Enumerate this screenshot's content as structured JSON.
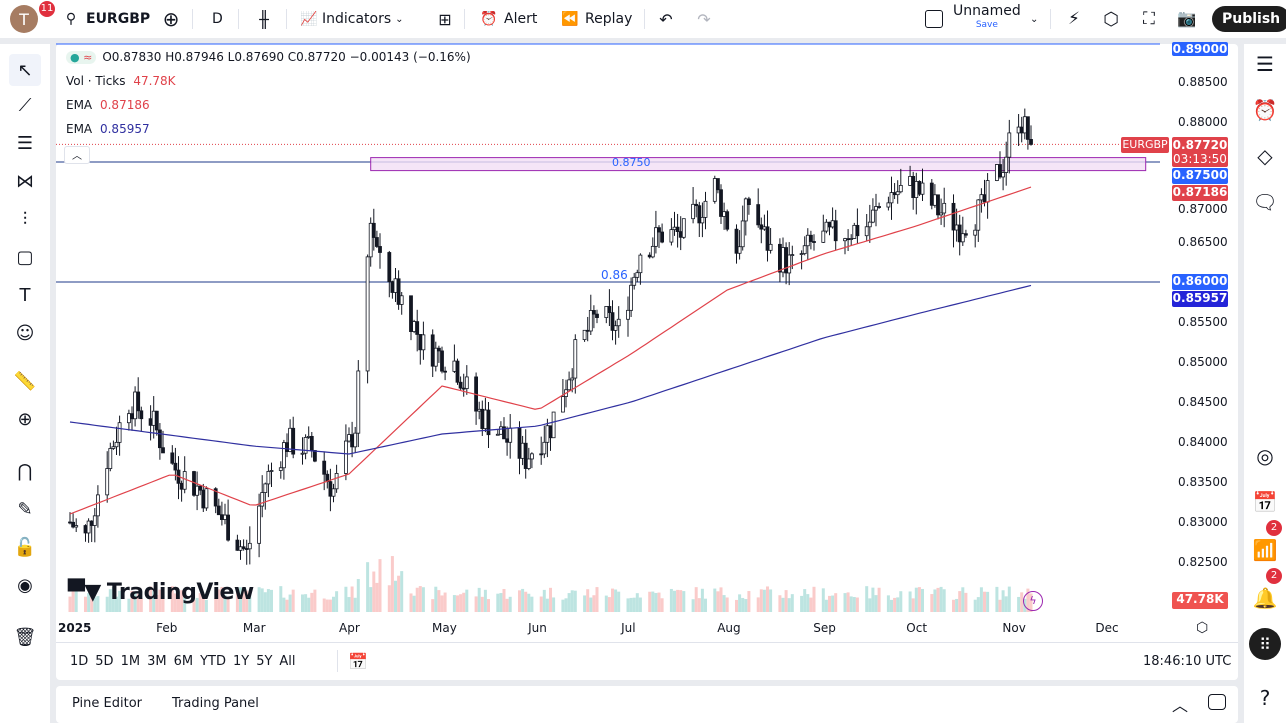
{
  "topbar": {
    "avatar_letter": "T",
    "avatar_badge": "11",
    "symbol": "EURGBP",
    "interval": "D",
    "indicators": "Indicators",
    "alert": "Alert",
    "replay": "Replay",
    "layout_name": "Unnamed",
    "save": "Save",
    "publish": "Publish"
  },
  "legend": {
    "ohlc": "O0.87830 H0.87946 L0.87690 C0.87720 −0.00143 (−0.16%)",
    "vol_label": "Vol · Ticks",
    "vol_value": "47.78K",
    "ema1_label": "EMA",
    "ema1_value": "0.87186",
    "ema2_label": "EMA",
    "ema2_value": "0.85957"
  },
  "price_axis": {
    "ticks": [
      "0.88500",
      "0.88000",
      "0.87000",
      "0.86500",
      "0.85500",
      "0.85000",
      "0.84500",
      "0.84000",
      "0.83500",
      "0.83000",
      "0.82500"
    ],
    "labels": {
      "top": "0.89000",
      "symbol_tag": "EURGBP",
      "last": "0.87720",
      "countdown": "03:13:50",
      "level1": "0.87500",
      "ema1": "0.87186",
      "level2": "0.86000",
      "ema2": "0.85957",
      "volume": "47.78K"
    }
  },
  "time_axis": [
    "2025",
    "Feb",
    "Mar",
    "Apr",
    "May",
    "Jun",
    "Jul",
    "Aug",
    "Sep",
    "Oct",
    "Nov",
    "Dec"
  ],
  "drawings": {
    "zone_label": "0.8750",
    "line_label": "0.86"
  },
  "logo": "TradingView",
  "timeframes": [
    "1D",
    "5D",
    "1M",
    "3M",
    "6M",
    "YTD",
    "1Y",
    "5Y",
    "All"
  ],
  "clock": "18:46:10 UTC",
  "bottom": {
    "pine": "Pine Editor",
    "trading": "Trading Panel"
  },
  "sidebar": {
    "badge_signals": "2",
    "badge_alerts": "2"
  },
  "colors": {
    "up": "#26a69a",
    "down": "#ef5350",
    "ema_fast": "#e0424a",
    "ema_slow": "#3030a0",
    "level": "#2962ff",
    "zone": "#9c27b0"
  },
  "chart_data": {
    "type": "candlestick",
    "symbol": "EURGBP",
    "interval": "1D",
    "close_path": [
      [
        "2025-01-01",
        0.83
      ],
      [
        "2025-01-06",
        0.828
      ],
      [
        "2025-01-13",
        0.838
      ],
      [
        "2025-01-20",
        0.845
      ],
      [
        "2025-01-27",
        0.843
      ],
      [
        "2025-02-03",
        0.837
      ],
      [
        "2025-02-12",
        0.834
      ],
      [
        "2025-02-20",
        0.83
      ],
      [
        "2025-02-27",
        0.826
      ],
      [
        "2025-03-05",
        0.835
      ],
      [
        "2025-03-12",
        0.84
      ],
      [
        "2025-03-20",
        0.839
      ],
      [
        "2025-03-27",
        0.834
      ],
      [
        "2025-04-03",
        0.842
      ],
      [
        "2025-04-08",
        0.868
      ],
      [
        "2025-04-11",
        0.862
      ],
      [
        "2025-04-18",
        0.858
      ],
      [
        "2025-04-25",
        0.852
      ],
      [
        "2025-05-05",
        0.85
      ],
      [
        "2025-05-12",
        0.844
      ],
      [
        "2025-05-20",
        0.841
      ],
      [
        "2025-05-28",
        0.838
      ],
      [
        "2025-06-05",
        0.842
      ],
      [
        "2025-06-13",
        0.851
      ],
      [
        "2025-06-20",
        0.856
      ],
      [
        "2025-06-27",
        0.854
      ],
      [
        "2025-07-04",
        0.864
      ],
      [
        "2025-07-11",
        0.866
      ],
      [
        "2025-07-18",
        0.866
      ],
      [
        "2025-07-28",
        0.872
      ],
      [
        "2025-08-04",
        0.864
      ],
      [
        "2025-08-08",
        0.87
      ],
      [
        "2025-08-15",
        0.864
      ],
      [
        "2025-08-22",
        0.862
      ],
      [
        "2025-08-29",
        0.865
      ],
      [
        "2025-09-05",
        0.866
      ],
      [
        "2025-09-15",
        0.867
      ],
      [
        "2025-09-22",
        0.871
      ],
      [
        "2025-09-30",
        0.872
      ],
      [
        "2025-10-08",
        0.869
      ],
      [
        "2025-10-15",
        0.867
      ],
      [
        "2025-10-22",
        0.869
      ],
      [
        "2025-10-29",
        0.875
      ],
      [
        "2025-11-03",
        0.881
      ],
      [
        "2025-11-07",
        0.8772
      ]
    ],
    "ema_fast": [
      [
        "2025-01-01",
        0.831
      ],
      [
        "2025-02-03",
        0.836
      ],
      [
        "2025-03-01",
        0.832
      ],
      [
        "2025-04-01",
        0.836
      ],
      [
        "2025-05-01",
        0.847
      ],
      [
        "2025-06-01",
        0.844
      ],
      [
        "2025-07-01",
        0.851
      ],
      [
        "2025-08-01",
        0.859
      ],
      [
        "2025-09-01",
        0.8635
      ],
      [
        "2025-10-01",
        0.867
      ],
      [
        "2025-11-07",
        0.87186
      ]
    ],
    "ema_slow": [
      [
        "2025-01-01",
        0.8425
      ],
      [
        "2025-03-01",
        0.8395
      ],
      [
        "2025-04-01",
        0.8385
      ],
      [
        "2025-05-01",
        0.841
      ],
      [
        "2025-06-01",
        0.842
      ],
      [
        "2025-07-01",
        0.845
      ],
      [
        "2025-08-01",
        0.849
      ],
      [
        "2025-09-01",
        0.853
      ],
      [
        "2025-10-01",
        0.856
      ],
      [
        "2025-11-07",
        0.85957
      ]
    ],
    "levels": [
      0.89,
      0.875,
      0.86
    ],
    "zone": {
      "from_date": "2025-04-08",
      "to_date": "2025-12-14",
      "low": 0.8736,
      "high": 0.8753
    },
    "y_range": [
      0.8225,
      0.8925
    ],
    "x_range": [
      "2025-01-01",
      "2025-12-31"
    ]
  }
}
